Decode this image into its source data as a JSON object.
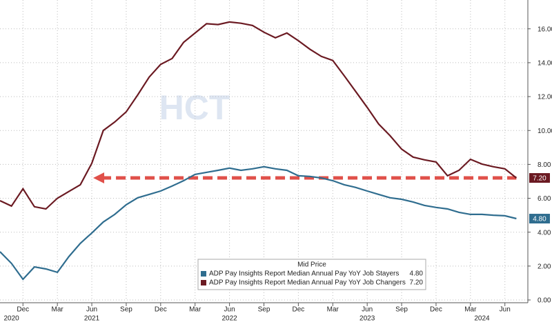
{
  "chart_data": {
    "type": "line",
    "watermark": "HCT",
    "legend_title": "Mid Price",
    "legend": "bottom-center",
    "grid": true,
    "x": [
      "2020-10",
      "2020-11",
      "2020-12",
      "2021-01",
      "2021-02",
      "2021-03",
      "2021-04",
      "2021-05",
      "2021-06",
      "2021-07",
      "2021-08",
      "2021-09",
      "2021-10",
      "2021-11",
      "2021-12",
      "2022-01",
      "2022-02",
      "2022-03",
      "2022-04",
      "2022-05",
      "2022-06",
      "2022-07",
      "2022-08",
      "2022-09",
      "2022-10",
      "2022-11",
      "2022-12",
      "2023-01",
      "2023-02",
      "2023-03",
      "2023-04",
      "2023-05",
      "2023-06",
      "2023-07",
      "2023-08",
      "2023-09",
      "2023-10",
      "2023-11",
      "2023-12",
      "2024-01",
      "2024-02",
      "2024-03",
      "2024-04",
      "2024-05",
      "2024-06",
      "2024-07"
    ],
    "xlim": [
      "2020-10",
      "2024-08"
    ],
    "xticks": [
      {
        "value": "2020-12",
        "label": "Dec"
      },
      {
        "value": "2021-03",
        "label": "Mar"
      },
      {
        "value": "2021-06",
        "label": "Jun"
      },
      {
        "value": "2021-09",
        "label": "Sep"
      },
      {
        "value": "2021-12",
        "label": "Dec"
      },
      {
        "value": "2022-03",
        "label": "Mar"
      },
      {
        "value": "2022-06",
        "label": "Jun"
      },
      {
        "value": "2022-09",
        "label": "Sep"
      },
      {
        "value": "2022-12",
        "label": "Dec"
      },
      {
        "value": "2023-03",
        "label": "Mar"
      },
      {
        "value": "2023-06",
        "label": "Jun"
      },
      {
        "value": "2023-09",
        "label": "Sep"
      },
      {
        "value": "2023-12",
        "label": "Dec"
      },
      {
        "value": "2024-03",
        "label": "Mar"
      },
      {
        "value": "2024-06",
        "label": "Jun"
      }
    ],
    "year_labels": [
      {
        "value": "2020-11",
        "label": "2020"
      },
      {
        "value": "2021-06",
        "label": "2021"
      },
      {
        "value": "2022-06",
        "label": "2022"
      },
      {
        "value": "2023-06",
        "label": "2023"
      },
      {
        "value": "2024-04",
        "label": "2024"
      }
    ],
    "ylim": [
      0,
      17.7
    ],
    "yticks": [
      {
        "value": 0,
        "label": "0.00"
      },
      {
        "value": 2,
        "label": "2.00"
      },
      {
        "value": 4,
        "label": "4.00"
      },
      {
        "value": 6,
        "label": "6.00"
      },
      {
        "value": 8,
        "label": "8.00"
      },
      {
        "value": 10,
        "label": "10.00"
      },
      {
        "value": 12,
        "label": "12.00"
      },
      {
        "value": 14,
        "label": "14.00"
      },
      {
        "value": 16,
        "label": "16.00"
      }
    ],
    "series": [
      {
        "name": "ADP Pay Insights Report Median Annual Pay YoY Job Stayers",
        "color": "#2f6d8f",
        "values": [
          2.85,
          2.16,
          1.22,
          1.95,
          1.83,
          1.63,
          2.56,
          3.34,
          3.95,
          4.6,
          5.05,
          5.62,
          6.03,
          6.23,
          6.43,
          6.72,
          7.04,
          7.41,
          7.53,
          7.65,
          7.78,
          7.65,
          7.74,
          7.86,
          7.74,
          7.65,
          7.33,
          7.29,
          7.2,
          7.04,
          6.8,
          6.64,
          6.43,
          6.23,
          6.03,
          5.94,
          5.78,
          5.58,
          5.46,
          5.37,
          5.17,
          5.05,
          5.05,
          5.0,
          4.97,
          4.8
        ],
        "value_labels": [
          null,
          null,
          null,
          null,
          null,
          null,
          null,
          null,
          null,
          null,
          null,
          null,
          null,
          null,
          null,
          null,
          null,
          null,
          null,
          null,
          null,
          null,
          null,
          null,
          null,
          null,
          null,
          null,
          null,
          null,
          null,
          null,
          null,
          null,
          null,
          null,
          null,
          null,
          null,
          null,
          null,
          null,
          null,
          null,
          null,
          "4.80"
        ]
      },
      {
        "name": "ADP Pay Insights Report Median Annual Pay YoY Job Changers",
        "color": "#6b1a22",
        "values": [
          5.86,
          5.54,
          6.56,
          5.5,
          5.37,
          6.0,
          6.4,
          6.8,
          8.06,
          10.0,
          10.5,
          11.1,
          12.1,
          13.15,
          13.9,
          14.25,
          15.2,
          15.75,
          16.3,
          16.25,
          16.4,
          16.33,
          16.2,
          15.8,
          15.47,
          15.75,
          15.3,
          14.8,
          14.37,
          14.13,
          13.23,
          12.3,
          11.36,
          10.38,
          9.69,
          8.9,
          8.43,
          8.27,
          8.14,
          7.33,
          7.65,
          8.3,
          8.02,
          7.86,
          7.74,
          7.2
        ],
        "value_labels": [
          null,
          null,
          null,
          null,
          null,
          null,
          null,
          null,
          null,
          null,
          null,
          null,
          null,
          null,
          null,
          null,
          null,
          null,
          null,
          null,
          null,
          null,
          null,
          null,
          null,
          null,
          null,
          null,
          null,
          null,
          null,
          null,
          null,
          null,
          null,
          null,
          null,
          null,
          null,
          null,
          null,
          null,
          null,
          null,
          null,
          "7.20"
        ]
      }
    ],
    "annotation_color": "#e0504a"
  }
}
